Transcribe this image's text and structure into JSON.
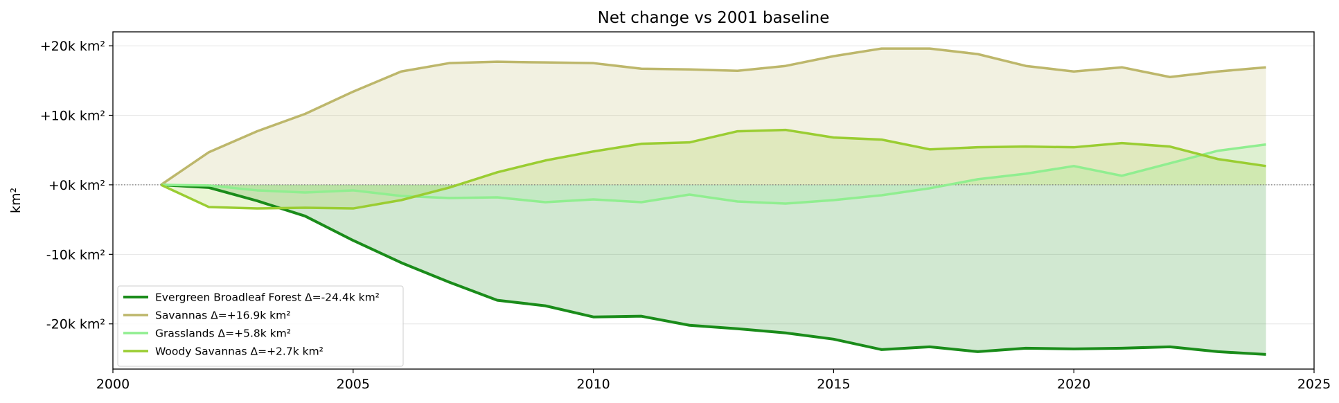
{
  "chart_data": {
    "type": "area",
    "title": "Net change vs 2001 baseline",
    "xlabel": "",
    "ylabel": "km²",
    "xlim": [
      2000,
      2025
    ],
    "ylim": [
      -26500,
      22000
    ],
    "x_ticks": [
      2000,
      2005,
      2010,
      2015,
      2020,
      2025
    ],
    "x_tick_labels": [
      "2000",
      "2005",
      "2010",
      "2015",
      "2020",
      "2025"
    ],
    "y_ticks": [
      20000,
      10000,
      0,
      -10000,
      -20000
    ],
    "y_tick_labels": [
      "+20k km²",
      "+10k km²",
      "+0k km²",
      "-10k km²",
      "-20k km²"
    ],
    "grid": "horizontal",
    "baseline": 0,
    "legend_position": "lower-left",
    "x": [
      2001,
      2002,
      2003,
      2004,
      2005,
      2006,
      2007,
      2008,
      2009,
      2010,
      2011,
      2012,
      2013,
      2014,
      2015,
      2016,
      2017,
      2018,
      2019,
      2020,
      2021,
      2022,
      2023,
      2024
    ],
    "series": [
      {
        "name": "Evergreen Broadleaf Forest",
        "legend_label": "Evergreen Broadleaf Forest  Δ=-24.4k km²",
        "color": "#1a8c1a",
        "fill": "#1a8c1a",
        "values": [
          0,
          -400,
          -2300,
          -4500,
          -8000,
          -11200,
          -14000,
          -16600,
          -17400,
          -19000,
          -18900,
          -20200,
          -20700,
          -21300,
          -22200,
          -23700,
          -23300,
          -24000,
          -23500,
          -23600,
          -23500,
          -23300,
          -24000,
          -24400
        ]
      },
      {
        "name": "Savannas",
        "legend_label": "Savannas  Δ=+16.9k km²",
        "color": "#bdb76b",
        "fill": "#bdb76b",
        "values": [
          0,
          4700,
          7700,
          10200,
          13400,
          16300,
          17500,
          17700,
          17600,
          17500,
          16700,
          16600,
          16400,
          17100,
          18500,
          19600,
          19600,
          18800,
          17100,
          16300,
          16900,
          15500,
          16300,
          16900
        ]
      },
      {
        "name": "Grasslands",
        "legend_label": "Grasslands  Δ=+5.8k km²",
        "color": "#90ee90",
        "fill": "#90ee90",
        "values": [
          0,
          -100,
          -800,
          -1100,
          -800,
          -1600,
          -1900,
          -1800,
          -2500,
          -2100,
          -2500,
          -1400,
          -2400,
          -2700,
          -2200,
          -1500,
          -500,
          800,
          1600,
          2700,
          1300,
          3100,
          4900,
          5800
        ]
      },
      {
        "name": "Woody Savannas",
        "legend_label": "Woody Savannas  Δ=+2.7k km²",
        "color": "#9acd32",
        "fill": "#9acd32",
        "values": [
          0,
          -3200,
          -3400,
          -3300,
          -3400,
          -2200,
          -400,
          1800,
          3500,
          4800,
          5900,
          6100,
          7700,
          7900,
          6800,
          6500,
          5100,
          5400,
          5500,
          5400,
          6000,
          5500,
          3700,
          2700
        ]
      }
    ]
  }
}
